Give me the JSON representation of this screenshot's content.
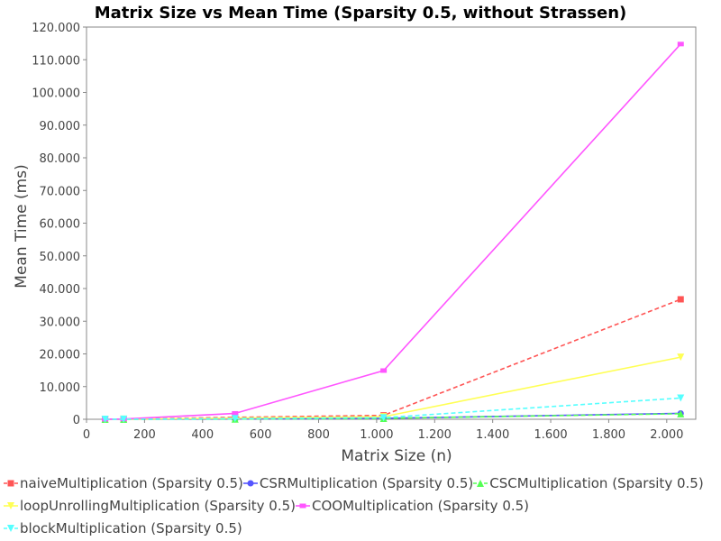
{
  "chart_data": {
    "type": "line",
    "title": "Matrix Size vs Mean Time (Sparsity 0.5, without Strassen)",
    "xlabel": "Matrix Size (n)",
    "ylabel": "Mean Time (ms)",
    "xlim": [
      0,
      2100
    ],
    "ylim": [
      0,
      120000
    ],
    "x_ticks": [
      0,
      200,
      400,
      600,
      800,
      1000,
      1200,
      1400,
      1600,
      1800,
      2000
    ],
    "x_tick_labels": [
      "0",
      "200",
      "400",
      "600",
      "800",
      "1.000",
      "1.200",
      "1.400",
      "1.600",
      "1.800",
      "2.000"
    ],
    "y_ticks": [
      0,
      10000,
      20000,
      30000,
      40000,
      50000,
      60000,
      70000,
      80000,
      90000,
      100000,
      110000,
      120000
    ],
    "y_tick_labels": [
      "0",
      "10.000",
      "20.000",
      "30.000",
      "40.000",
      "50.000",
      "60.000",
      "70.000",
      "80.000",
      "90.000",
      "100.000",
      "110.000",
      "120.000"
    ],
    "grid": false,
    "legend_position": "bottom",
    "x": [
      64,
      128,
      512,
      1024,
      2048
    ],
    "series": [
      {
        "name": "naiveMultiplication (Sparsity 0.5)",
        "color": "#ff5555",
        "marker": "square",
        "dashed": true,
        "values": [
          20,
          50,
          600,
          1200,
          36700
        ]
      },
      {
        "name": "CSRMultiplication (Sparsity 0.5)",
        "color": "#5555ff",
        "marker": "circle",
        "dashed": false,
        "values": [
          5,
          10,
          80,
          300,
          1800
        ]
      },
      {
        "name": "CSCMultiplication (Sparsity 0.5)",
        "color": "#55ff55",
        "marker": "triangle-up",
        "dashed": true,
        "values": [
          5,
          10,
          70,
          280,
          1700
        ]
      },
      {
        "name": "loopUnrollingMultiplication (Sparsity 0.5)",
        "color": "#ffff55",
        "marker": "triangle-down",
        "dashed": false,
        "values": [
          10,
          30,
          350,
          800,
          19000
        ]
      },
      {
        "name": "COOMultiplication (Sparsity 0.5)",
        "color": "#ff55ff",
        "marker": "rect",
        "dashed": false,
        "values": [
          10,
          80,
          1800,
          14900,
          114800
        ]
      },
      {
        "name": "blockMultiplication (Sparsity 0.5)",
        "color": "#55ffff",
        "marker": "triangle-down",
        "dashed": true,
        "values": [
          5,
          20,
          200,
          500,
          6500
        ]
      }
    ]
  }
}
